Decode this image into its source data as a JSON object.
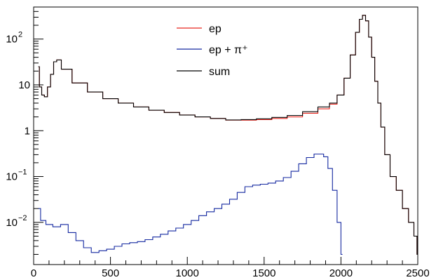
{
  "chart_data": {
    "type": "line",
    "title": "",
    "xlabel": "",
    "ylabel": "",
    "xlim": [
      0,
      2500
    ],
    "ylim": [
      0.0012,
      500
    ],
    "y_scale": "log",
    "grid": false,
    "legend_position": "top-center",
    "x_ticks": [
      "0",
      "500",
      "1000",
      "1500",
      "2000",
      "2500"
    ],
    "y_ticks": [
      {
        "value": 0.01,
        "base": "10",
        "exp": "−2"
      },
      {
        "value": 0.1,
        "base": "10",
        "exp": "−1"
      },
      {
        "value": 1,
        "label": "1"
      },
      {
        "value": 10,
        "label": "10"
      },
      {
        "value": 100,
        "base": "10",
        "exp": "2"
      }
    ],
    "series": [
      {
        "name": "ep",
        "color": "#e8261e",
        "x": [
          30,
          45,
          60,
          80,
          100,
          120,
          140,
          160,
          200,
          300,
          400,
          500,
          600,
          700,
          800,
          900,
          1000,
          1100,
          1200,
          1300,
          1400,
          1500,
          1600,
          1700,
          1800,
          1900,
          1950,
          2000,
          2040,
          2080,
          2110,
          2130,
          2150,
          2170,
          2190,
          2210,
          2230,
          2250,
          2270,
          2300,
          2340,
          2380,
          2420,
          2460,
          2490,
          2500
        ],
        "y": [
          25,
          9,
          6,
          5.5,
          9,
          17,
          32,
          35,
          22,
          11,
          7,
          5,
          4,
          3.3,
          2.8,
          2.5,
          2.2,
          2.0,
          1.85,
          1.7,
          1.7,
          1.75,
          1.85,
          2.0,
          2.4,
          3.0,
          3.8,
          6,
          14,
          45,
          140,
          270,
          330,
          250,
          110,
          40,
          12,
          4,
          1.2,
          0.3,
          0.1,
          0.05,
          0.02,
          0.01,
          0.005,
          0.002
        ]
      },
      {
        "name": "ep + π⁺",
        "color": "#1428a0",
        "x": [
          30,
          60,
          100,
          150,
          200,
          250,
          300,
          350,
          400,
          450,
          500,
          550,
          600,
          650,
          700,
          750,
          800,
          850,
          900,
          950,
          1000,
          1050,
          1100,
          1150,
          1200,
          1250,
          1300,
          1350,
          1400,
          1450,
          1500,
          1550,
          1600,
          1650,
          1700,
          1750,
          1800,
          1850,
          1875,
          1900,
          1930,
          1960,
          1990,
          2010
        ],
        "y": [
          0.02,
          0.011,
          0.009,
          0.008,
          0.009,
          0.006,
          0.004,
          0.0028,
          0.0022,
          0.0024,
          0.0026,
          0.003,
          0.0034,
          0.0036,
          0.0038,
          0.0042,
          0.0048,
          0.0055,
          0.0065,
          0.0075,
          0.009,
          0.011,
          0.014,
          0.017,
          0.02,
          0.025,
          0.032,
          0.045,
          0.06,
          0.065,
          0.068,
          0.072,
          0.08,
          0.095,
          0.13,
          0.19,
          0.26,
          0.31,
          0.31,
          0.27,
          0.15,
          0.05,
          0.01,
          0.002
        ]
      },
      {
        "name": "sum",
        "color": "#000000",
        "x": [
          30,
          45,
          60,
          80,
          100,
          120,
          140,
          160,
          200,
          300,
          400,
          500,
          600,
          700,
          800,
          900,
          1000,
          1100,
          1200,
          1300,
          1400,
          1500,
          1600,
          1700,
          1800,
          1900,
          1950,
          2000,
          2040,
          2080,
          2110,
          2130,
          2150,
          2170,
          2190,
          2210,
          2230,
          2250,
          2270,
          2300,
          2340,
          2380,
          2420,
          2460,
          2490,
          2500
        ],
        "y": [
          25,
          9,
          6,
          5.5,
          9,
          17,
          32,
          35,
          22,
          11,
          7,
          5,
          4,
          3.3,
          2.8,
          2.5,
          2.2,
          2.0,
          1.85,
          1.72,
          1.75,
          1.82,
          1.95,
          2.15,
          2.6,
          3.3,
          4.0,
          6,
          14,
          45,
          140,
          270,
          330,
          250,
          110,
          40,
          12,
          4,
          1.2,
          0.3,
          0.1,
          0.05,
          0.02,
          0.01,
          0.005,
          0.002
        ]
      }
    ]
  }
}
